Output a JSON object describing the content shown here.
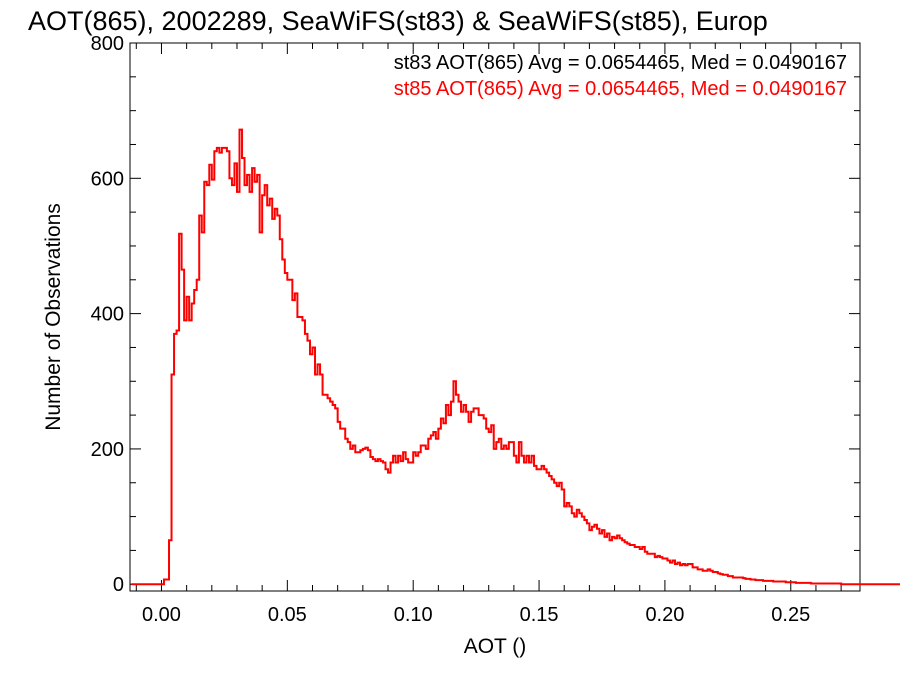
{
  "chart_data": {
    "type": "line",
    "step": true,
    "title": "AOT(865), 2002289, SeaWiFS(st83) & SeaWiFS(st85), Europ",
    "xlabel": "AOT ()",
    "ylabel": "Number of Observations",
    "xlim": [
      -0.0125,
      0.2775
    ],
    "ylim": [
      -10,
      800
    ],
    "xticks": [
      0.0,
      0.05,
      0.1,
      0.15,
      0.2,
      0.25
    ],
    "xtick_labels": [
      "0.00",
      "0.05",
      "0.10",
      "0.15",
      "0.20",
      "0.25"
    ],
    "yticks": [
      0,
      200,
      400,
      600,
      800
    ],
    "ytick_labels": [
      "0",
      "200",
      "400",
      "600",
      "800"
    ],
    "grid": false,
    "bin_width": 0.001,
    "x_start": -0.012,
    "legend_position": "top-right",
    "legend": [
      {
        "text": "st83 AOT(865) Avg = 0.0654465, Med = 0.0490167",
        "color": "#000000"
      },
      {
        "text": "st85 AOT(865) Avg = 0.0654465, Med = 0.0490167",
        "color": "#ff0000"
      }
    ],
    "series": [
      {
        "color": "#ff0000",
        "values": [
          0,
          0,
          0,
          0,
          0,
          0,
          0,
          0,
          0,
          0,
          0,
          0,
          0,
          7,
          7,
          65,
          310,
          370,
          375,
          518,
          465,
          390,
          425,
          390,
          415,
          435,
          450,
          545,
          520,
          595,
          590,
          620,
          598,
          640,
          645,
          638,
          645,
          645,
          640,
          600,
          590,
          622,
          580,
          672,
          630,
          590,
          605,
          580,
          615,
          595,
          605,
          520,
          575,
          590,
          560,
          570,
          540,
          555,
          545,
          510,
          480,
          460,
          450,
          450,
          420,
          430,
          395,
          395,
          390,
          370,
          360,
          340,
          350,
          310,
          325,
          310,
          280,
          280,
          275,
          270,
          265,
          260,
          240,
          230,
          230,
          215,
          210,
          200,
          205,
          195,
          195,
          198,
          200,
          202,
          198,
          188,
          185,
          182,
          185,
          182,
          180,
          170,
          165,
          180,
          190,
          180,
          190,
          182,
          195,
          185,
          180,
          180,
          195,
          190,
          195,
          205,
          205,
          200,
          215,
          220,
          225,
          215,
          230,
          245,
          238,
          265,
          250,
          270,
          300,
          280,
          270,
          255,
          265,
          255,
          240,
          255,
          260,
          260,
          250,
          250,
          245,
          230,
          225,
          235,
          200,
          210,
          215,
          200,
          205,
          200,
          210,
          210,
          190,
          180,
          210,
          190,
          180,
          190,
          180,
          190,
          175,
          170,
          170,
          175,
          170,
          165,
          160,
          155,
          150,
          145,
          150,
          140,
          115,
          120,
          115,
          105,
          100,
          110,
          105,
          100,
          95,
          90,
          80,
          85,
          88,
          82,
          75,
          80,
          70,
          75,
          65,
          70,
          68,
          72,
          68,
          65,
          62,
          60,
          58,
          58,
          55,
          55,
          52,
          55,
          48,
          45,
          45,
          45,
          40,
          42,
          40,
          38,
          38,
          35,
          32,
          35,
          30,
          32,
          28,
          30,
          28,
          30,
          30,
          25,
          25,
          22,
          22,
          20,
          20,
          22,
          20,
          18,
          18,
          16,
          15,
          14,
          14,
          12,
          12,
          10,
          10,
          10,
          10,
          9,
          8,
          8,
          7,
          7,
          6,
          6,
          6,
          5,
          5,
          5,
          5,
          4,
          4,
          4,
          4,
          4,
          3,
          3,
          3,
          3,
          2,
          2,
          2,
          2,
          2,
          2,
          1,
          1,
          1,
          1,
          1,
          1,
          1,
          1,
          1,
          1,
          1,
          1,
          0,
          0,
          0,
          0,
          0,
          0,
          0,
          0,
          0,
          0,
          0,
          0,
          0,
          0,
          0,
          0,
          0,
          0,
          0,
          0,
          0,
          0,
          0,
          0,
          0
        ]
      }
    ]
  }
}
